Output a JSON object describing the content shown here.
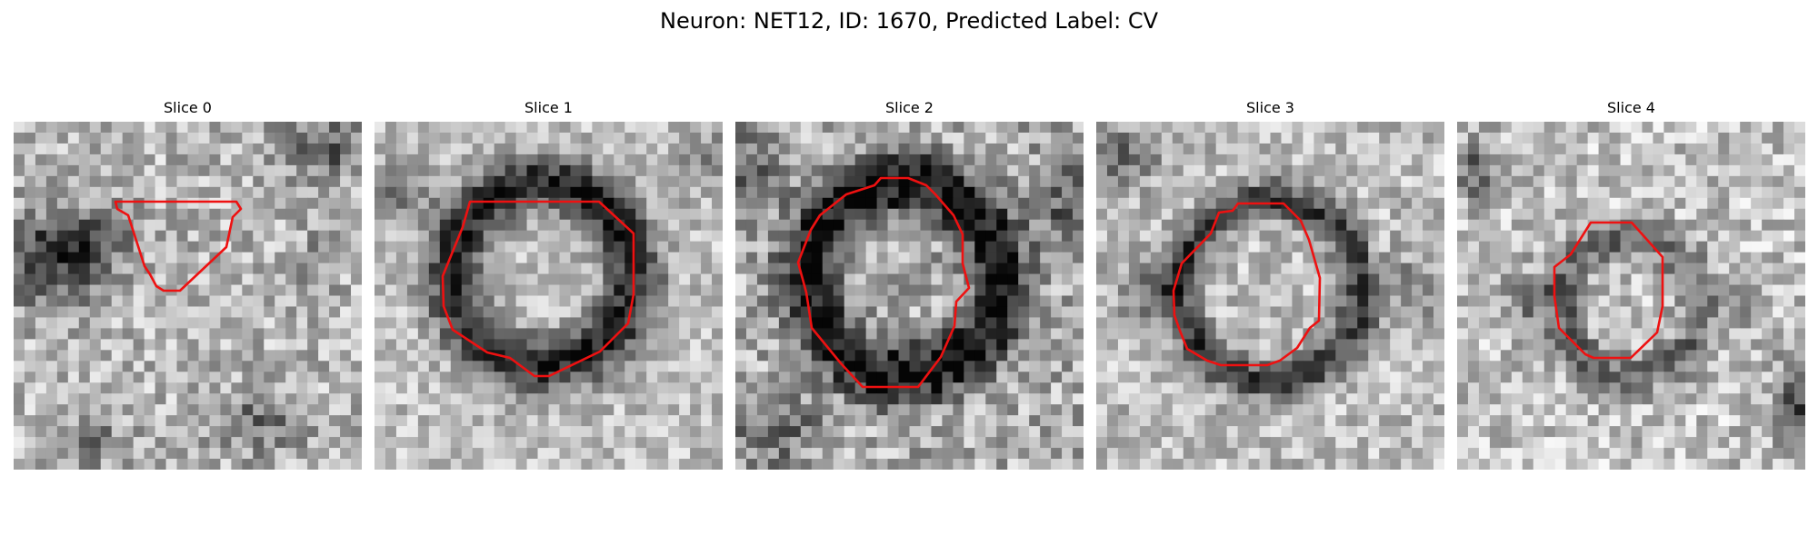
{
  "figure": {
    "title": "Neuron: NET12, ID: 1670, Predicted Label: CV"
  },
  "panels": [
    {
      "title": "Slice 0"
    },
    {
      "title": "Slice 1"
    },
    {
      "title": "Slice 2"
    },
    {
      "title": "Slice 3"
    },
    {
      "title": "Slice 4"
    }
  ],
  "colors": {
    "outline": "#ee1111"
  }
}
